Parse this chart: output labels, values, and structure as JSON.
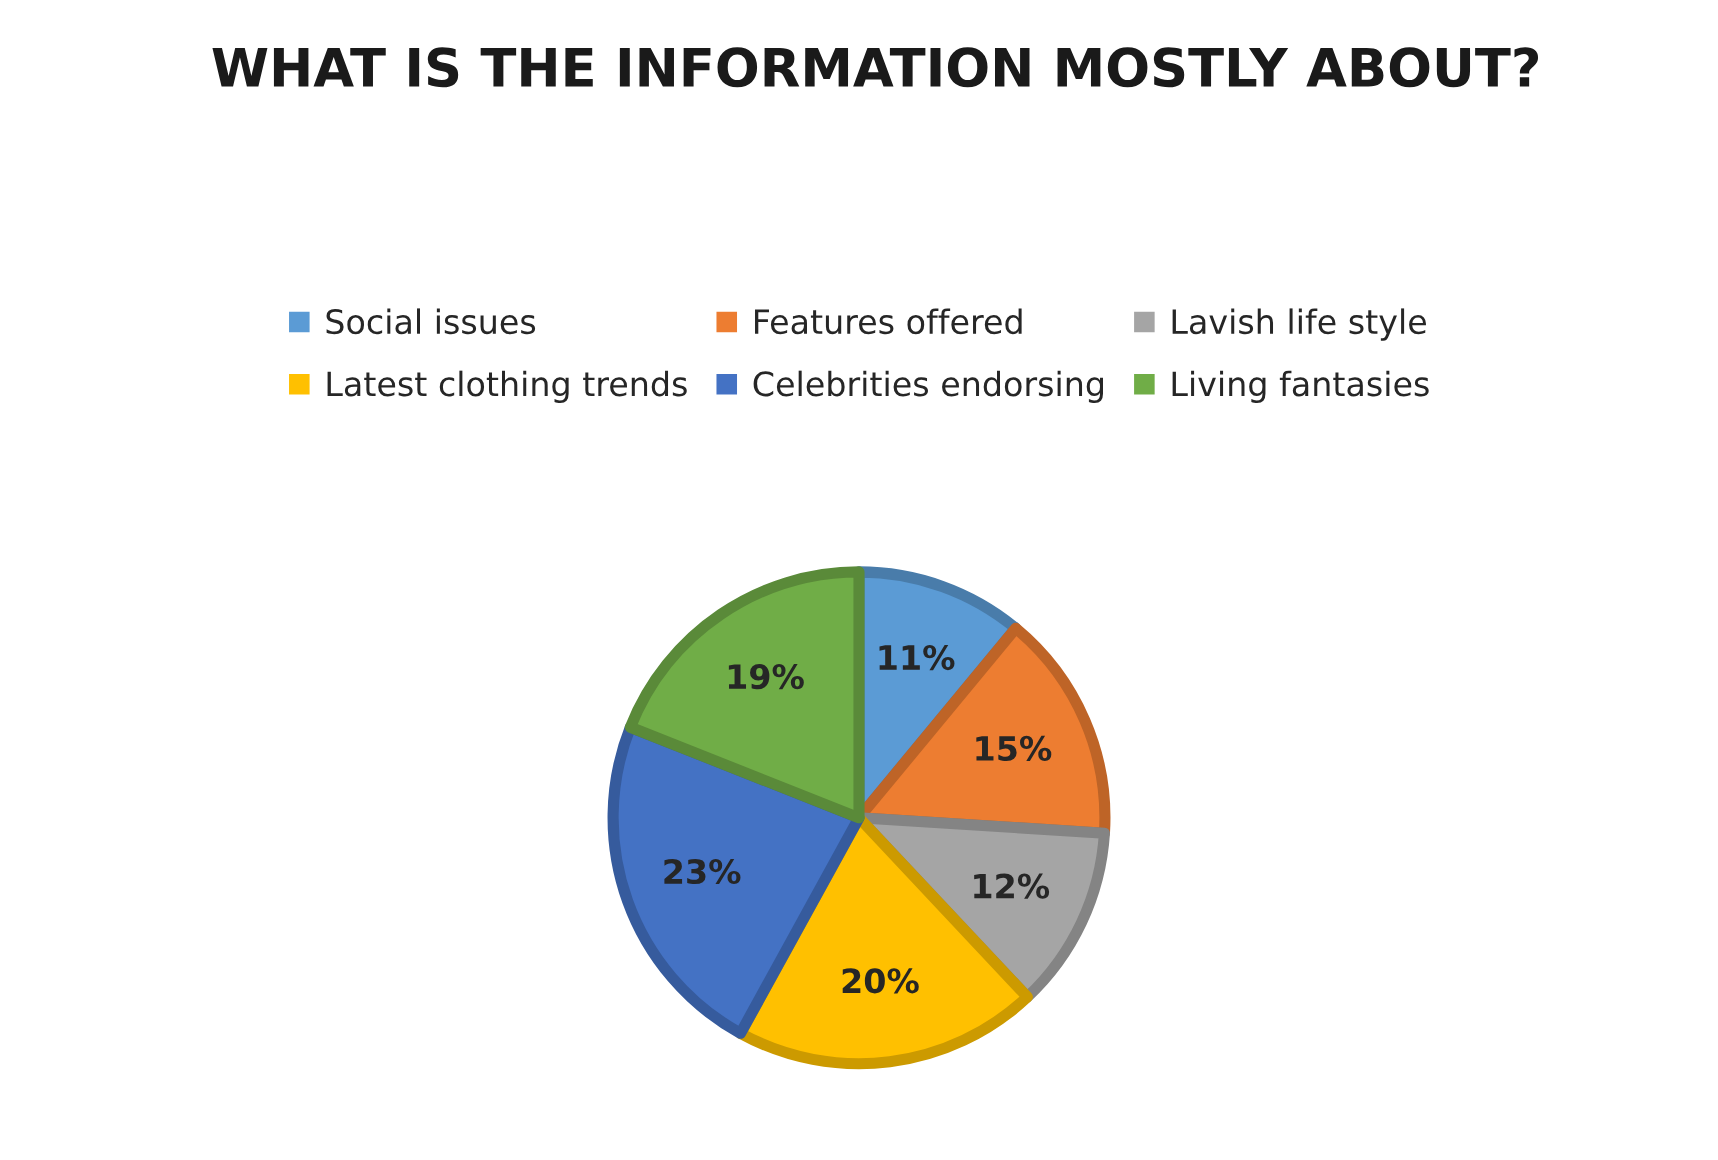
{
  "chart_data": {
    "type": "pie",
    "title": "WHAT IS THE INFORMATION MOSTLY ABOUT?",
    "categories": [
      "Social issues",
      "Features offered",
      "Lavish life style",
      "Latest clothing trends",
      "Celebrities endorsing",
      "Living fantasies"
    ],
    "values": [
      11,
      15,
      12,
      20,
      23,
      19
    ],
    "colors": [
      "#5b9bd5",
      "#ed7d31",
      "#a5a5a5",
      "#ffc000",
      "#4472c4",
      "#70ad47"
    ],
    "value_labels": [
      "11%",
      "15%",
      "12%",
      "20%",
      "23%",
      "19%"
    ],
    "legend": "top"
  }
}
